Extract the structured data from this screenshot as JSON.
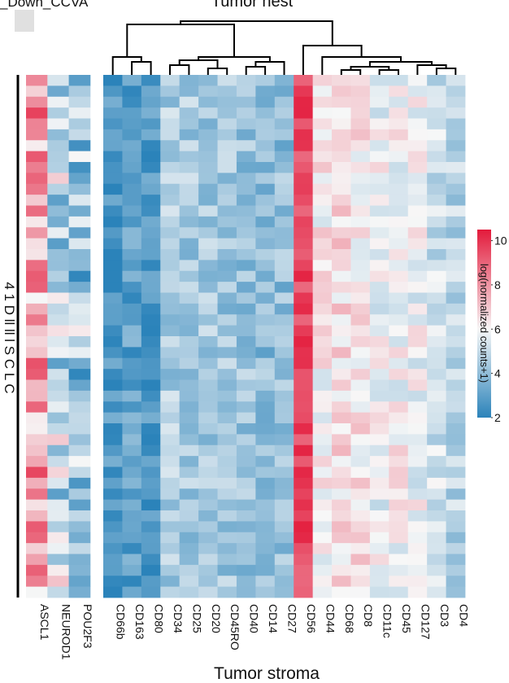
{
  "chart_data": {
    "type": "heatmap",
    "title_partial_left": "_Down_CCVA",
    "title_partial_top": "Tumor nest",
    "xlabel": "Tumor stroma",
    "ylabel_partial": "4 1 D ll   ll   l   S C L C",
    "colorbar": {
      "label": "log(normalized counts+1)",
      "ticks": [
        2,
        4,
        6,
        8,
        10
      ],
      "range": [
        2,
        10.5
      ],
      "colors": {
        "low": "#2b83ba",
        "mid": "#f7f7f7",
        "high": "#e31a3b"
      }
    },
    "left_block_genes": [
      "ASCL1",
      "NEUROD1",
      "POU2F3"
    ],
    "main_genes": [
      "CD66b",
      "CD163",
      "CD80",
      "CD34",
      "CD25",
      "CD20",
      "CD45RO",
      "CD40",
      "CD14",
      "CD27",
      "CD56",
      "CD44",
      "CD68",
      "CD8",
      "CD11c",
      "CD45",
      "CD127",
      "CD3",
      "CD4"
    ],
    "row_count": 48,
    "main_column_base": [
      2.6,
      3.0,
      2.7,
      4.5,
      4.4,
      4.4,
      4.3,
      4.2,
      3.9,
      4.0,
      9.6,
      6.2,
      6.6,
      6.4,
      5.8,
      6.0,
      5.8,
      5.2,
      4.8
    ],
    "left_column_base": [
      7.6,
      5.0,
      4.2
    ]
  }
}
